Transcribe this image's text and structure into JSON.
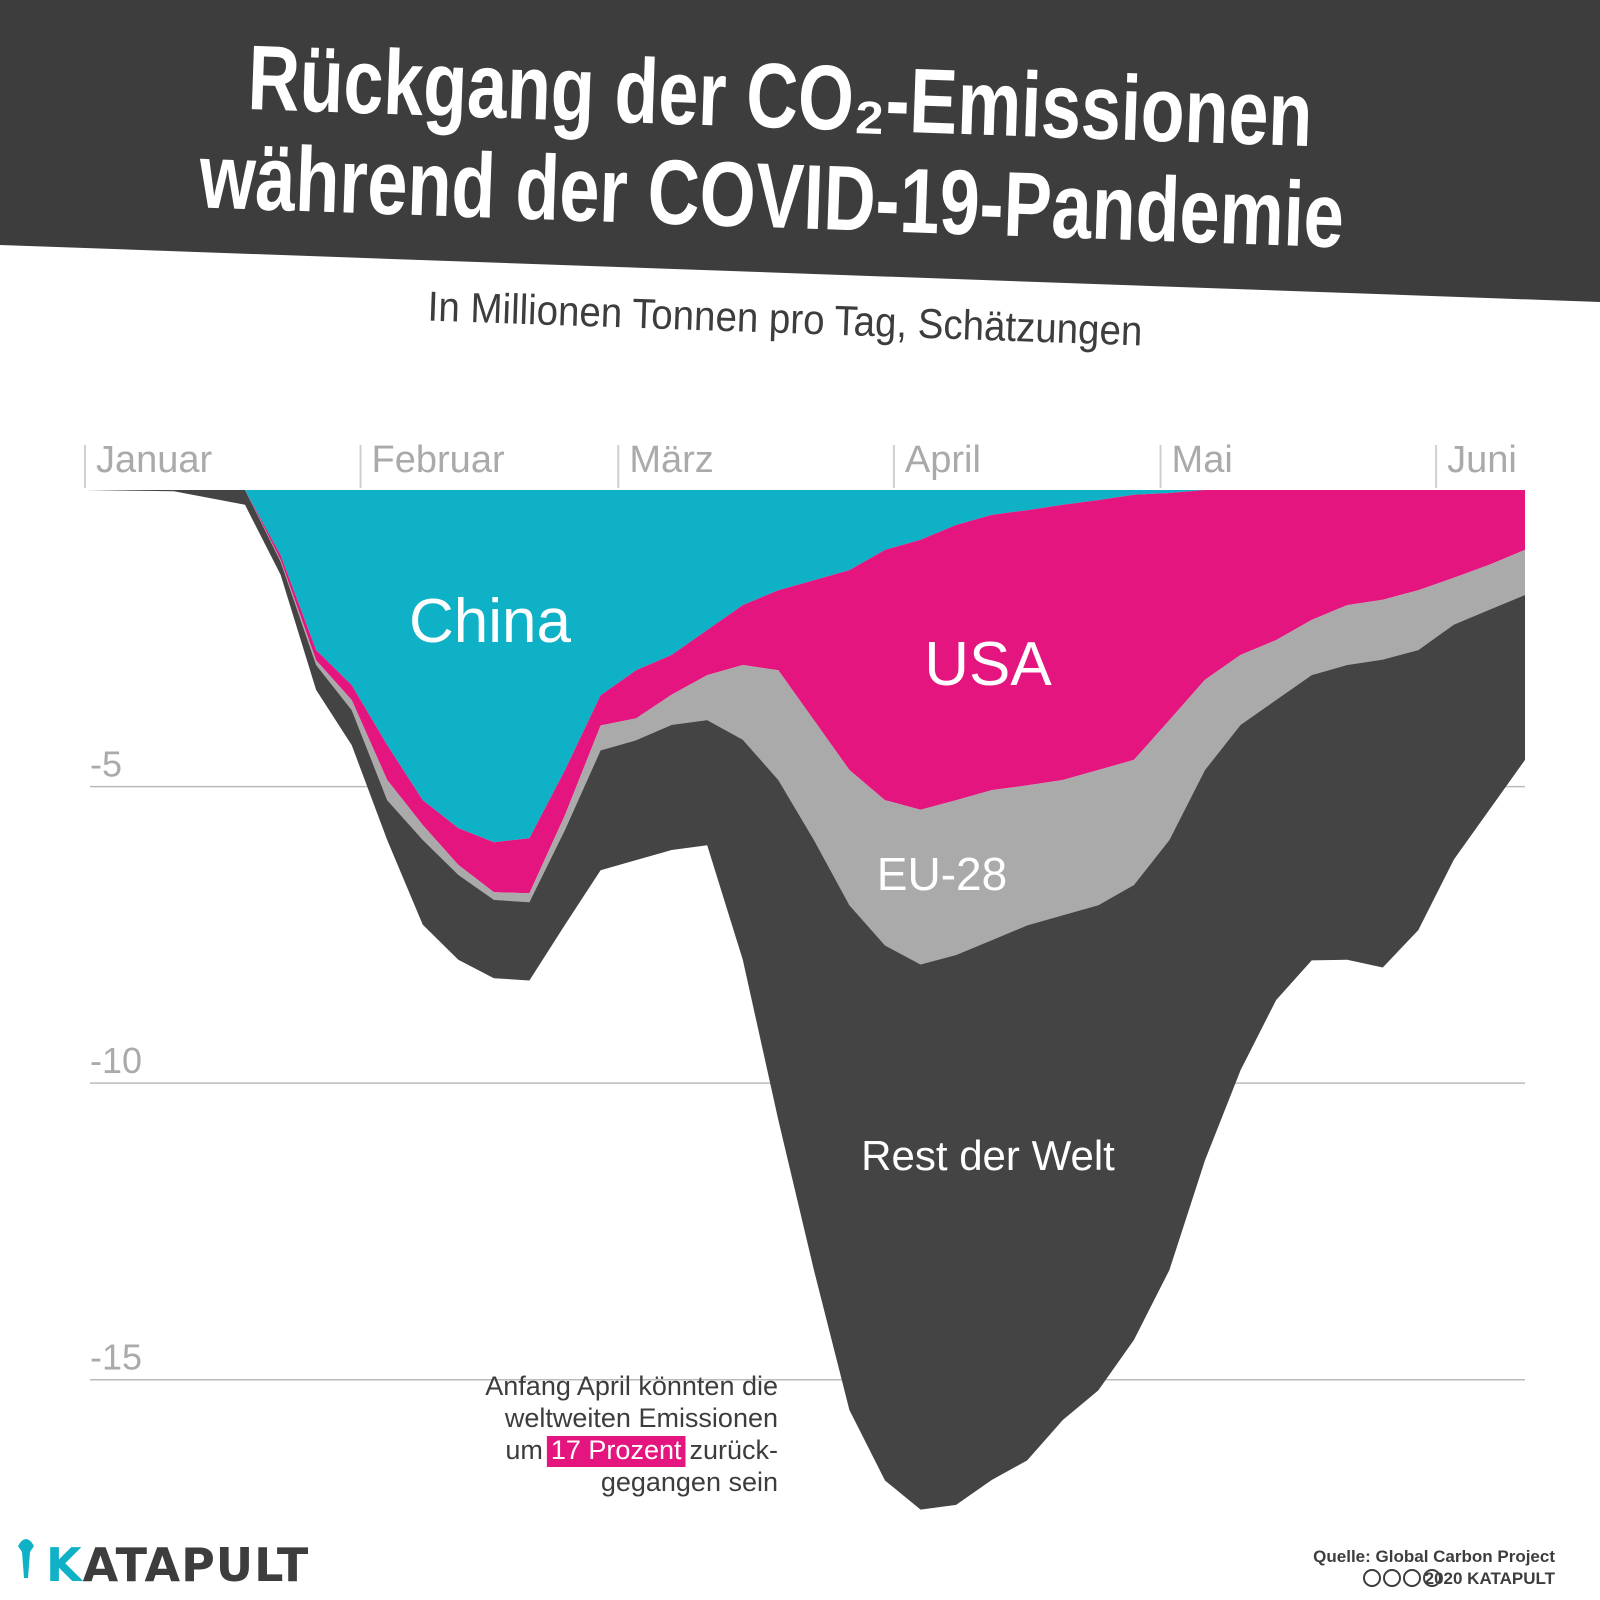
{
  "title": [
    "Rückgang der CO₂-Emissionen",
    "während der COVID-19-Pandemie"
  ],
  "chart_data": {
    "type": "stacked-area",
    "subtitle": "In Millionen Tonnen pro Tag, Schätzungen",
    "x": [
      0,
      10,
      18,
      22,
      26,
      30,
      34,
      38,
      42,
      46,
      50,
      54,
      58,
      62,
      66,
      70,
      74,
      78,
      82,
      86,
      90,
      94,
      98,
      102,
      106,
      110,
      114,
      118,
      122,
      126,
      130,
      134,
      138,
      142,
      146,
      150,
      154,
      158,
      162
    ],
    "xlim": [
      0,
      162
    ],
    "xticks": [
      {
        "value": 0,
        "label": "Januar"
      },
      {
        "value": 31,
        "label": "Februar"
      },
      {
        "value": 60,
        "label": "März"
      },
      {
        "value": 91,
        "label": "April"
      },
      {
        "value": 121,
        "label": "Mai"
      },
      {
        "value": 152,
        "label": "Juni"
      }
    ],
    "ylim": [
      -17.5,
      0
    ],
    "yticks": [
      -15,
      -10,
      -5
    ],
    "grid": true,
    "series": [
      {
        "name": "China",
        "color": "#0eb1c6",
        "values": [
          0,
          0,
          0,
          -1.1,
          -2.7,
          -3.29,
          -4.3,
          -5.23,
          -5.7,
          -5.94,
          -5.87,
          -4.72,
          -3.46,
          -3.04,
          -2.78,
          -2.36,
          -1.94,
          -1.69,
          -1.52,
          -1.35,
          -1.01,
          -0.84,
          -0.59,
          -0.42,
          -0.34,
          -0.25,
          -0.17,
          -0.08,
          -0.05,
          0,
          0,
          0,
          0,
          0,
          0,
          0,
          0,
          0,
          0
        ]
      },
      {
        "name": "USA",
        "color": "#e4157f",
        "values": [
          0,
          0,
          0,
          -0.08,
          -0.17,
          -0.25,
          -0.59,
          -0.42,
          -0.62,
          -0.84,
          -0.93,
          -0.76,
          -0.51,
          -0.81,
          -0.67,
          -0.76,
          -1.01,
          -1.35,
          -2.36,
          -3.37,
          -4.22,
          -4.55,
          -4.64,
          -4.64,
          -4.64,
          -4.64,
          -4.55,
          -4.47,
          -3.83,
          -3.2,
          -2.78,
          -2.53,
          -2.19,
          -1.94,
          -1.85,
          -1.69,
          -1.48,
          -1.26,
          -1.01
        ]
      },
      {
        "name": "EU-28",
        "color": "#aaaaaa",
        "values": [
          0,
          0,
          0,
          -0.03,
          -0.08,
          -0.17,
          -0.34,
          -0.25,
          -0.17,
          -0.13,
          -0.15,
          -0.25,
          -0.42,
          -0.37,
          -0.51,
          -0.76,
          -1.26,
          -1.85,
          -2.02,
          -2.28,
          -2.45,
          -2.61,
          -2.61,
          -2.53,
          -2.36,
          -2.28,
          -2.28,
          -2.11,
          -2.02,
          -1.52,
          -1.18,
          -1.01,
          -0.93,
          -1.01,
          -1.01,
          -1.01,
          -0.79,
          -0.76,
          -0.76
        ]
      },
      {
        "name": "Rest der Welt",
        "color": "#444444",
        "values": [
          0,
          -0.02,
          -0.25,
          -0.22,
          -0.42,
          -0.59,
          -0.67,
          -1.43,
          -1.43,
          -1.32,
          -1.32,
          -1.6,
          -2.02,
          -2.02,
          -2.11,
          -2.11,
          -3.71,
          -5.73,
          -7.25,
          -8.51,
          -9.02,
          -9.19,
          -9.27,
          -9.1,
          -9.02,
          -8.51,
          -8.18,
          -7.67,
          -7.25,
          -6.58,
          -5.82,
          -5.06,
          -4.81,
          -4.97,
          -5.19,
          -4.72,
          -3.96,
          -3.37,
          -2.78
        ]
      }
    ],
    "annotation": {
      "line1": "Anfang April könnten die",
      "line2": "weltweiten Emissionen",
      "line3_start": "um",
      "highlight": "17 Prozent",
      "line3_end": "zurück-",
      "line4": "gegangen sein"
    }
  },
  "footer": {
    "logo": "KATAPULT",
    "source": "Quelle: Global Carbon Project",
    "copyright": "2020 KATAPULT"
  }
}
